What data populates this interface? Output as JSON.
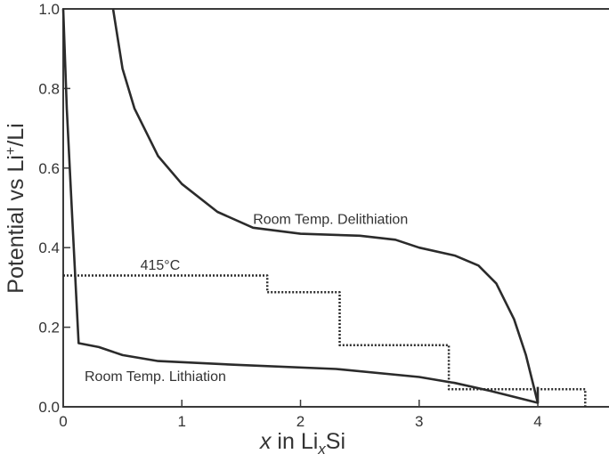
{
  "chart_data": {
    "type": "line",
    "xlabel": {
      "italic": "x",
      "text": " in Li",
      "sub": "x",
      "tail": "Si"
    },
    "ylabel": {
      "text": "Potential vs Li",
      "sup": "+",
      "tail": "/Li"
    },
    "xlim": [
      0,
      4.6
    ],
    "ylim": [
      0,
      1.0
    ],
    "xticks": [
      "0",
      "1",
      "2",
      "3",
      "4"
    ],
    "xtick_values": [
      0,
      1,
      2,
      3,
      4
    ],
    "yticks": [
      "0.0",
      "0.2",
      "0.4",
      "0.6",
      "0.8",
      "1.0"
    ],
    "ytick_values": [
      0,
      0.2,
      0.4,
      0.6,
      0.8,
      1.0
    ],
    "grid": false,
    "colors": {
      "curve": "#2b2b2b",
      "axis": "#3a3a3a"
    },
    "series": [
      {
        "name": "Room Temp. Delithiation",
        "style": "solid",
        "x": [
          0.42,
          0.5,
          0.6,
          0.8,
          1.0,
          1.3,
          1.6,
          2.0,
          2.5,
          2.8,
          3.0,
          3.3,
          3.5,
          3.65,
          3.8,
          3.9,
          4.0
        ],
        "y": [
          1.0,
          0.85,
          0.75,
          0.63,
          0.56,
          0.49,
          0.45,
          0.435,
          0.43,
          0.42,
          0.4,
          0.38,
          0.355,
          0.31,
          0.22,
          0.13,
          0.01
        ]
      },
      {
        "name": "Room Temp. Lithiation",
        "style": "solid",
        "x": [
          0,
          0.03,
          0.08,
          0.13,
          0.3,
          0.5,
          0.8,
          1.5,
          2.3,
          3.0,
          3.3,
          3.6,
          4.0,
          4.0
        ],
        "y": [
          1.0,
          0.75,
          0.45,
          0.16,
          0.15,
          0.13,
          0.115,
          0.105,
          0.095,
          0.075,
          0.06,
          0.04,
          0.01,
          0.05
        ]
      },
      {
        "name": "415°C",
        "style": "dotted",
        "x": [
          0,
          1.72,
          1.72,
          2.33,
          2.33,
          3.25,
          3.25,
          4.4,
          4.4
        ],
        "y": [
          0.33,
          0.33,
          0.288,
          0.288,
          0.155,
          0.155,
          0.044,
          0.044,
          0.0
        ]
      }
    ],
    "annotations": [
      {
        "text": "Room Temp. Delithiation",
        "x": 1.6,
        "y": 0.46
      },
      {
        "text": "415°C",
        "x": 0.65,
        "y": 0.345
      },
      {
        "text": "Room Temp. Lithiation",
        "x": 0.18,
        "y": 0.065
      }
    ]
  }
}
